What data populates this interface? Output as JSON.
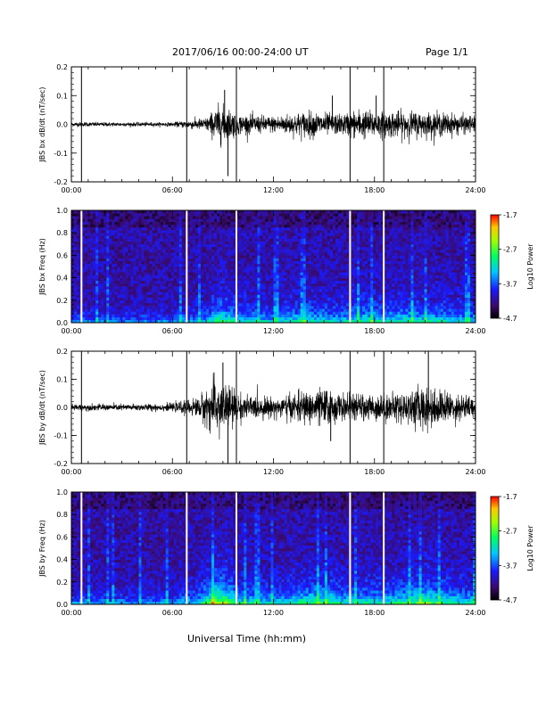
{
  "header": {
    "title": "2017/06/16  00:00-24:00 UT",
    "page": "Page 1/1"
  },
  "x_axis_title": "Universal Time (hh:mm)",
  "chart_data": [
    {
      "type": "line",
      "ylabel": "JBS bx dB/dt (nT/sec)",
      "xlim": [
        0,
        24
      ],
      "ylim": [
        -0.2,
        0.2
      ],
      "xticks": [
        "00:00",
        "06:00",
        "12:00",
        "18:00",
        "24:00"
      ],
      "yticks": [
        "0.2",
        "0.1",
        "0.0",
        "-0.1",
        "-0.2"
      ],
      "gap_markers_hours": [
        0.6,
        6.85,
        9.8,
        16.55,
        18.55
      ],
      "activity_envelope": {
        "x": [
          0,
          3,
          6,
          8,
          8.8,
          9.3,
          10,
          12,
          14,
          16,
          17,
          18,
          20,
          22,
          24
        ],
        "y": [
          0.007,
          0.006,
          0.006,
          0.02,
          0.06,
          0.05,
          0.03,
          0.025,
          0.04,
          0.03,
          0.045,
          0.04,
          0.04,
          0.035,
          0.025
        ]
      },
      "notable_spikes": [
        {
          "x": 9.1,
          "y": 0.12
        },
        {
          "x": 9.3,
          "y": -0.18
        },
        {
          "x": 15.5,
          "y": 0.1
        },
        {
          "x": 18.1,
          "y": 0.1
        }
      ]
    },
    {
      "type": "heatmap",
      "ylabel": "JBS bx Freq (Hz)",
      "xlim": [
        0,
        24
      ],
      "ylim": [
        0,
        1
      ],
      "xticks": [
        "00:00",
        "06:00",
        "12:00",
        "18:00",
        "24:00"
      ],
      "yticks": [
        "1.0",
        "0.8",
        "0.6",
        "0.4",
        "0.2",
        "0.0"
      ],
      "colorbar": {
        "label": "Log10 Power",
        "min": -4.7,
        "max": -1.7,
        "ticks": [
          "-1.7",
          "-2.7",
          "-3.7",
          "-4.7"
        ]
      },
      "gap_markers_hours": [
        0.6,
        6.85,
        9.8,
        16.55,
        18.55
      ]
    },
    {
      "type": "line",
      "ylabel": "JBS by dB/dt (nT/sec)",
      "xlim": [
        0,
        24
      ],
      "ylim": [
        -0.2,
        0.2
      ],
      "xticks": [
        "00:00",
        "06:00",
        "12:00",
        "18:00",
        "24:00"
      ],
      "yticks": [
        "0.2",
        "0.1",
        "0.0",
        "-0.1",
        "-0.2"
      ],
      "gap_markers_hours": [
        0.6,
        6.85,
        9.8,
        16.55,
        18.55
      ],
      "activity_envelope": {
        "x": [
          0,
          3,
          6,
          7.5,
          8.6,
          9.2,
          10,
          12,
          14,
          15,
          16,
          18,
          20,
          21,
          22,
          24
        ],
        "y": [
          0.01,
          0.01,
          0.012,
          0.03,
          0.09,
          0.08,
          0.04,
          0.03,
          0.05,
          0.06,
          0.04,
          0.04,
          0.05,
          0.07,
          0.05,
          0.035
        ]
      },
      "notable_spikes": [
        {
          "x": 9.0,
          "y": 0.16
        },
        {
          "x": 9.3,
          "y": -0.2
        },
        {
          "x": 21.2,
          "y": 0.2
        },
        {
          "x": 15.4,
          "y": -0.12
        }
      ]
    },
    {
      "type": "heatmap",
      "ylabel": "JBS by Freq (Hz)",
      "xlim": [
        0,
        24
      ],
      "ylim": [
        0,
        1
      ],
      "xticks": [
        "00:00",
        "06:00",
        "12:00",
        "18:00",
        "24:00"
      ],
      "yticks": [
        "1.0",
        "0.8",
        "0.6",
        "0.4",
        "0.2",
        "0.0"
      ],
      "colorbar": {
        "label": "Log10 Power",
        "min": -4.7,
        "max": -1.7,
        "ticks": [
          "-1.7",
          "-2.7",
          "-3.7",
          "-4.7"
        ]
      },
      "gap_markers_hours": [
        0.6,
        6.85,
        9.8,
        16.55,
        18.55
      ]
    }
  ]
}
